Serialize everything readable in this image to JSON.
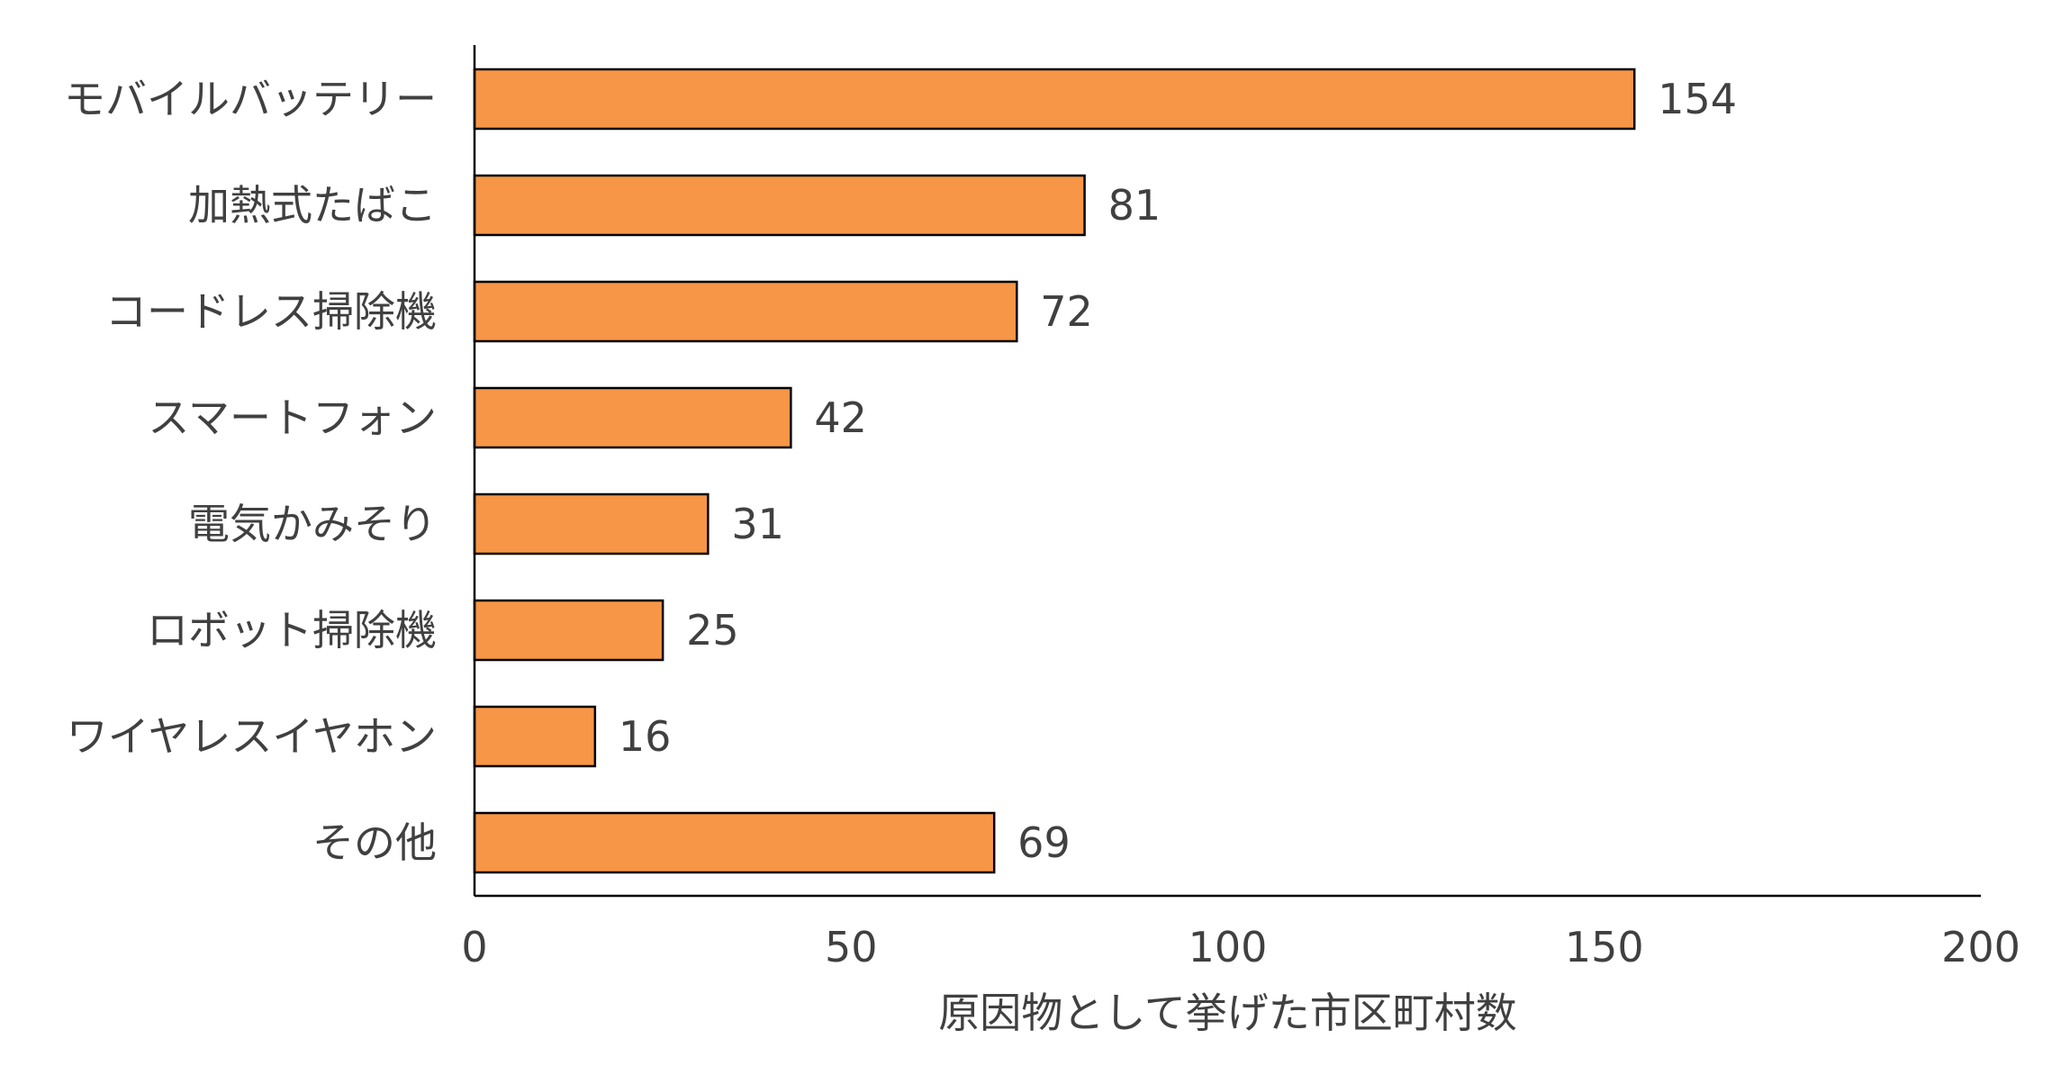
{
  "chart_data": {
    "type": "bar",
    "orientation": "horizontal",
    "categories": [
      "モバイルバッテリー",
      "加熱式たばこ",
      "コードレス掃除機",
      "スマートフォン",
      "電気かみそり",
      "ロボット掃除機",
      "ワイヤレスイヤホン",
      "その他"
    ],
    "values": [
      154,
      81,
      72,
      42,
      31,
      25,
      16,
      69
    ],
    "title": "",
    "xlabel": "原因物として挙げた市区町村数",
    "ylabel": "",
    "xlim": [
      0,
      200
    ],
    "xticks": [
      0,
      50,
      100,
      150,
      200
    ],
    "xtick_labels": [
      "0",
      "50",
      "100",
      "150",
      "200"
    ],
    "data_labels": [
      "154",
      "81",
      "72",
      "42",
      "31",
      "25",
      "16",
      "69"
    ],
    "grid": false,
    "legend": "none",
    "colors": {
      "bar_fill": "#F79646",
      "bar_stroke": "#000000",
      "axis": "#000000",
      "text": "#404040"
    }
  }
}
